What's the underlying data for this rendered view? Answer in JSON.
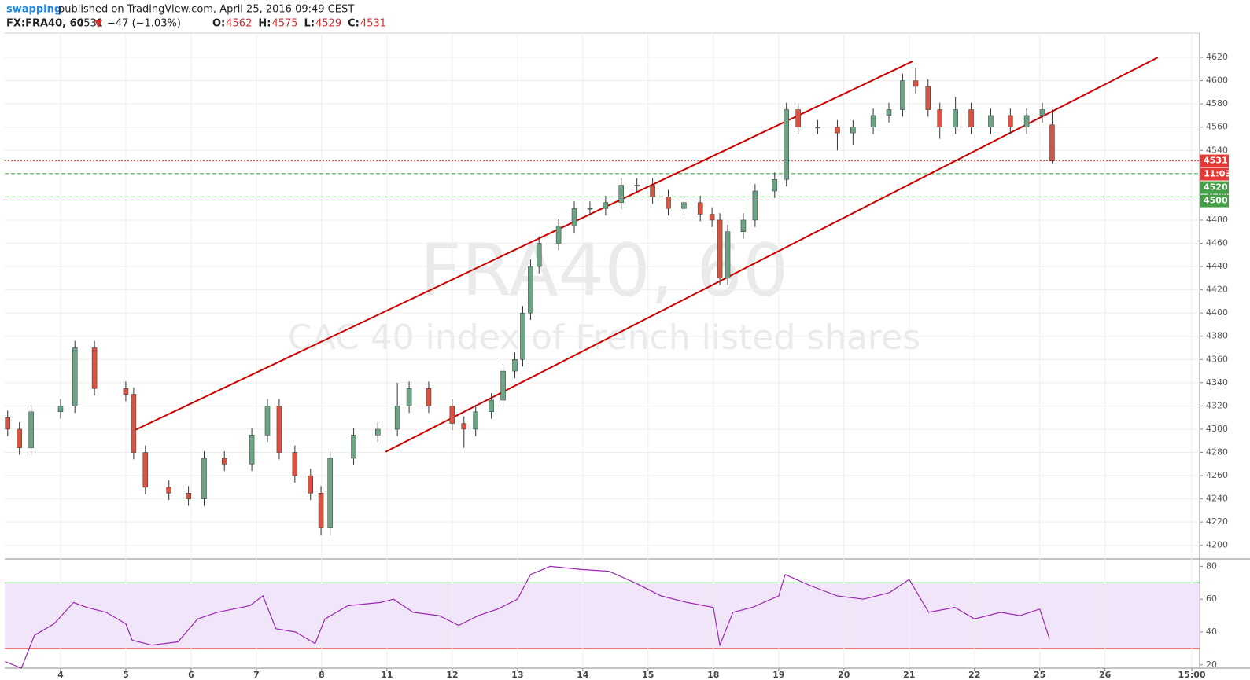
{
  "header": {
    "author": "swapping",
    "published": "published on TradingView.com, April 25, 2016 09:49 CEST",
    "symbol": "FX:FRA40, 60",
    "last": "4531",
    "change": "−47 (−1.03%)",
    "ohlc": [
      {
        "label": "O:",
        "value": "4562"
      },
      {
        "label": "H:",
        "value": "4575"
      },
      {
        "label": "L:",
        "value": "4529"
      },
      {
        "label": "C:",
        "value": "4531"
      }
    ]
  },
  "watermark": {
    "symbol": "FRA40, 60",
    "description": "CAC 40 index of French listed shares"
  },
  "chart_data": [
    {
      "type": "candlestick",
      "up_color": "#6ba583",
      "down_color": "#d75442",
      "grid": true,
      "xlim": [
        0.145,
        18.45
      ],
      "ylim": [
        4189,
        4641
      ],
      "yticks": [
        4200,
        4220,
        4240,
        4260,
        4280,
        4300,
        4320,
        4340,
        4360,
        4380,
        4400,
        4420,
        4440,
        4460,
        4480,
        4500,
        4520,
        4540,
        4560,
        4580,
        4600,
        4620
      ],
      "x": [
        0.19,
        0.37,
        0.55,
        1.0,
        1.22,
        1.52,
        2.0,
        2.12,
        2.3,
        2.66,
        2.96,
        3.2,
        3.51,
        3.93,
        4.17,
        4.35,
        4.59,
        4.83,
        4.99,
        5.13,
        5.49,
        5.86,
        6.16,
        6.34,
        6.64,
        7.0,
        7.18,
        7.36,
        7.6,
        7.78,
        7.96,
        8.08,
        8.2,
        8.33,
        8.63,
        8.87,
        9.11,
        9.35,
        9.59,
        9.83,
        10.07,
        10.31,
        10.55,
        10.8,
        10.98,
        11.1,
        11.22,
        11.46,
        11.64,
        11.94,
        12.12,
        12.3,
        12.6,
        12.9,
        13.14,
        13.45,
        13.69,
        13.9,
        14.1,
        14.29,
        14.47,
        14.71,
        14.95,
        15.25,
        15.55,
        15.8,
        16.04,
        16.19
      ],
      "open": [
        4310,
        4300,
        4284,
        4315,
        4320,
        4370,
        4335,
        4330,
        4280,
        4250,
        4245,
        4240,
        4275,
        4270,
        4295,
        4320,
        4280,
        4260,
        4245,
        4215,
        4275,
        4295,
        4300,
        4320,
        4335,
        4320,
        4305,
        4300,
        4315,
        4325,
        4350,
        4360,
        4400,
        4440,
        4460,
        4475,
        4490,
        4490,
        4495,
        4510,
        4510,
        4500,
        4490,
        4495,
        4485,
        4480,
        4430,
        4470,
        4480,
        4505,
        4515,
        4575,
        4560,
        4560,
        4555,
        4560,
        4570,
        4575,
        4600,
        4595,
        4575,
        4560,
        4575,
        4560,
        4570,
        4560,
        4570,
        4562
      ],
      "high": [
        4316,
        4306,
        4321,
        4326,
        4376,
        4376,
        4341,
        4336,
        4286,
        4256,
        4251,
        4281,
        4281,
        4301,
        4326,
        4326,
        4286,
        4266,
        4251,
        4281,
        4301,
        4306,
        4340,
        4341,
        4341,
        4326,
        4311,
        4321,
        4331,
        4356,
        4366,
        4406,
        4446,
        4466,
        4481,
        4496,
        4496,
        4501,
        4516,
        4516,
        4516,
        4506,
        4501,
        4501,
        4491,
        4486,
        4476,
        4486,
        4511,
        4521,
        4581,
        4581,
        4566,
        4566,
        4566,
        4576,
        4581,
        4606,
        4611,
        4601,
        4581,
        4586,
        4581,
        4576,
        4576,
        4576,
        4581,
        4575
      ],
      "low": [
        4294,
        4278,
        4278,
        4309,
        4314,
        4329,
        4324,
        4274,
        4244,
        4239,
        4234,
        4234,
        4264,
        4264,
        4289,
        4274,
        4254,
        4239,
        4209,
        4209,
        4269,
        4289,
        4294,
        4314,
        4314,
        4299,
        4284,
        4294,
        4309,
        4319,
        4344,
        4354,
        4394,
        4434,
        4454,
        4469,
        4484,
        4484,
        4489,
        4504,
        4494,
        4484,
        4484,
        4479,
        4474,
        4424,
        4424,
        4464,
        4474,
        4499,
        4509,
        4554,
        4554,
        4540,
        4545,
        4554,
        4564,
        4569,
        4589,
        4569,
        4550,
        4554,
        4554,
        4554,
        4554,
        4554,
        4564,
        4529
      ],
      "close": [
        4300,
        4284,
        4315,
        4320,
        4370,
        4335,
        4330,
        4280,
        4250,
        4245,
        4240,
        4275,
        4270,
        4295,
        4320,
        4280,
        4260,
        4245,
        4215,
        4275,
        4295,
        4300,
        4320,
        4335,
        4320,
        4305,
        4300,
        4315,
        4325,
        4350,
        4360,
        4400,
        4440,
        4460,
        4475,
        4490,
        4490,
        4495,
        4510,
        4510,
        4500,
        4490,
        4495,
        4485,
        4480,
        4430,
        4470,
        4480,
        4505,
        4515,
        4575,
        4560,
        4560,
        4555,
        4560,
        4570,
        4575,
        4600,
        4595,
        4575,
        4560,
        4575,
        4560,
        4570,
        4560,
        4570,
        4575,
        4531
      ],
      "levels": [
        {
          "value": 4531,
          "color": "#e53935",
          "style": "dotted"
        },
        {
          "value": 4520,
          "color": "#43a047",
          "style": "dashed"
        },
        {
          "value": 4500,
          "color": "#43a047",
          "style": "dashed"
        }
      ],
      "countdown": "11:03",
      "countdown_color": "#e53935",
      "trendlines": [
        {
          "x": [
            2.12,
            14.05
          ],
          "values": [
            4298.7,
            4616.6
          ],
          "color": "#cc0000"
        },
        {
          "x": [
            5.98,
            17.81
          ],
          "values": [
            4280.5,
            4620
          ],
          "color": "#cc0000"
        }
      ]
    },
    {
      "type": "line",
      "color": "#9c27b0",
      "band": [
        30,
        70
      ],
      "band_color": "#e8d5f5",
      "xlim": [
        0.145,
        18.45
      ],
      "ylim": [
        18,
        84
      ],
      "yticks": [
        20,
        40,
        60,
        80
      ],
      "xticks": [
        {
          "value": 1,
          "label": "4"
        },
        {
          "value": 2,
          "label": "5"
        },
        {
          "value": 3,
          "label": "6"
        },
        {
          "value": 4,
          "label": "7"
        },
        {
          "value": 5,
          "label": "8"
        },
        {
          "value": 6,
          "label": "11"
        },
        {
          "value": 7,
          "label": "12"
        },
        {
          "value": 8,
          "label": "13"
        },
        {
          "value": 9,
          "label": "14"
        },
        {
          "value": 10,
          "label": "15"
        },
        {
          "value": 11,
          "label": "18"
        },
        {
          "value": 12,
          "label": "19"
        },
        {
          "value": 13,
          "label": "20"
        },
        {
          "value": 14,
          "label": "21"
        },
        {
          "value": 15,
          "label": "22"
        },
        {
          "value": 16,
          "label": "25"
        },
        {
          "value": 17,
          "label": "26"
        },
        {
          "value": 18.33,
          "label": "15:00"
        }
      ],
      "x": [
        0.15,
        0.4,
        0.6,
        0.9,
        1.2,
        1.4,
        1.7,
        2.0,
        2.1,
        2.4,
        2.8,
        3.1,
        3.4,
        3.9,
        4.1,
        4.3,
        4.6,
        4.9,
        5.05,
        5.4,
        5.9,
        6.1,
        6.4,
        6.8,
        7.1,
        7.4,
        7.7,
        8.0,
        8.2,
        8.5,
        9.0,
        9.4,
        9.8,
        10.2,
        10.6,
        11.0,
        11.1,
        11.3,
        11.6,
        12.0,
        12.1,
        12.5,
        12.9,
        13.3,
        13.7,
        14.0,
        14.3,
        14.7,
        15.0,
        15.4,
        15.7,
        16.0,
        16.15
      ],
      "values": [
        22,
        18,
        38,
        45,
        58,
        55,
        52,
        45,
        35,
        32,
        34,
        48,
        52,
        56,
        62,
        42,
        40,
        33,
        48,
        56,
        58,
        60,
        52,
        50,
        44,
        50,
        54,
        60,
        75,
        80,
        78,
        77,
        70,
        62,
        58,
        55,
        32,
        52,
        55,
        62,
        75,
        68,
        62,
        60,
        64,
        72,
        52,
        55,
        48,
        52,
        50,
        54,
        36
      ]
    }
  ]
}
